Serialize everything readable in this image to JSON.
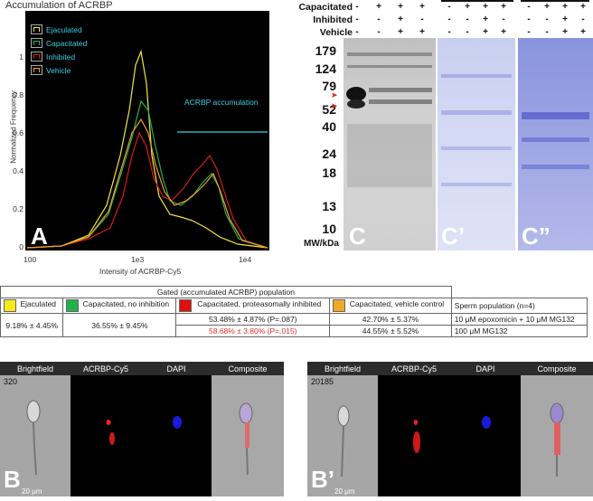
{
  "panel_a": {
    "title": "Accumulation of ACRBP",
    "y_axis_label": "Normalized Frequency",
    "x_axis_label": "Intensity of ACRBP-Cy5",
    "y_ticks": [
      "1",
      "0.8",
      "0.6",
      "0.4",
      "0.2",
      "0"
    ],
    "x_ticks": [
      "100",
      "1e3",
      "1e4"
    ],
    "legend": [
      "Ejaculated",
      "Capacitated",
      "Inhibited",
      "Vehicle"
    ],
    "annotation": "ACRBP accumulation",
    "letter": "A",
    "colors": {
      "ejaculated": "#f2e63c",
      "capacitated": "#22b14c",
      "inhibited": "#d61c1c",
      "vehicle": "#f0a028",
      "annotation": "#39d0e0"
    }
  },
  "panel_c": {
    "row_labels": [
      "Capacitated",
      "Inhibited",
      "Vehicle"
    ],
    "signs": [
      [
        "-",
        "+",
        "+",
        "+"
      ],
      [
        "-",
        "-",
        "+",
        "-"
      ],
      [
        "-",
        "-",
        "+",
        "+"
      ]
    ],
    "mw_markers": [
      "179",
      "124",
      "79",
      "52",
      "40",
      "24",
      "18",
      "13",
      "10"
    ],
    "mw_unit": "MW/kDa",
    "letters": [
      "C",
      "C’",
      "C”"
    ]
  },
  "table": {
    "header": "Gated (accumulated ACRBP) population",
    "columns": [
      "Ejaculated",
      "Capacitated, no inhibition",
      "Capacitated, proteasomally inhibited",
      "Capacitated, vehicle control"
    ],
    "population_header": "Sperm population (n=4)",
    "ejaculated": "9.18% ± 4.45%",
    "capacitated": "36.55% ± 9.45%",
    "inhibited_row1": "53.48% ± 4.87% (P=.087)",
    "inhibited_row2": "58.68% ± 3.80% (P=.015)",
    "vehicle_row1": "42.70% ± 5.37%",
    "vehicle_row2": "44.55% ± 5.52%",
    "treatment_row1": "10 μM epoxomicin + 10 μM MG132",
    "treatment_row2": "100 μM MG132",
    "swatch_colors": [
      "#f7ea1c",
      "#22b14c",
      "#e01010",
      "#f0a828"
    ]
  },
  "panel_b": {
    "channels": [
      "Brightfield",
      "ACRBP-Cy5",
      "DAPI",
      "Composite"
    ],
    "left_id": "320",
    "right_id": "20185",
    "scale": "20 μm",
    "letter_left": "B",
    "letter_right": "B’"
  }
}
